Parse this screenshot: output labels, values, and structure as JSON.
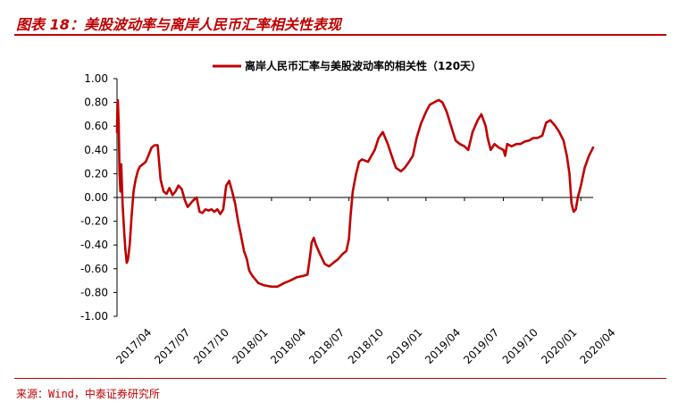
{
  "figure": {
    "title": "图表 18：美股波动率与离岸人民币汇率相关性表现",
    "source": "来源：Wind，中泰证券研究所"
  },
  "colors": {
    "accent": "#c00000",
    "series_line": "#c00000",
    "axis": "#000000"
  },
  "chart_data": {
    "type": "line",
    "title": "",
    "xlabel": "",
    "ylabel": "",
    "ylim": [
      -1.0,
      1.0
    ],
    "yticks": [
      "1.00",
      "0.80",
      "0.60",
      "0.40",
      "0.20",
      "0.00",
      "-0.20",
      "-0.40",
      "-0.60",
      "-0.80",
      "-1.00"
    ],
    "ytick_values": [
      1.0,
      0.8,
      0.6,
      0.4,
      0.2,
      0.0,
      -0.2,
      -0.4,
      -0.6,
      -0.8,
      -1.0
    ],
    "xticks": [
      "2017/04",
      "2017/07",
      "2017/10",
      "2018/01",
      "2018/04",
      "2018/07",
      "2018/10",
      "2019/01",
      "2019/04",
      "2019/07",
      "2019/10",
      "2020/01",
      "2020/04"
    ],
    "grid": false,
    "legend_position": "top-center",
    "series": [
      {
        "name": "离岸人民币汇率与美股波动率的相关性（120天）",
        "color": "#c00000",
        "x": [
          "2017-04-01",
          "2017-04-02",
          "2017-04-03",
          "2017-04-05",
          "2017-04-07",
          "2017-04-09",
          "2017-04-11",
          "2017-04-14",
          "2017-04-18",
          "2017-04-21",
          "2017-04-24",
          "2017-04-27",
          "2017-05-01",
          "2017-05-05",
          "2017-05-10",
          "2017-05-15",
          "2017-05-20",
          "2017-05-25",
          "2017-06-01",
          "2017-06-08",
          "2017-06-15",
          "2017-06-22",
          "2017-06-29",
          "2017-07-06",
          "2017-07-13",
          "2017-07-20",
          "2017-07-27",
          "2017-08-03",
          "2017-08-10",
          "2017-08-17",
          "2017-08-24",
          "2017-09-01",
          "2017-09-08",
          "2017-09-15",
          "2017-09-22",
          "2017-09-29",
          "2017-10-06",
          "2017-10-13",
          "2017-10-20",
          "2017-10-27",
          "2017-11-03",
          "2017-11-10",
          "2017-11-17",
          "2017-11-24",
          "2017-12-01",
          "2017-12-08",
          "2017-12-15",
          "2017-12-22",
          "2017-12-29",
          "2018-01-05",
          "2018-01-12",
          "2018-01-19",
          "2018-01-26",
          "2018-02-02",
          "2018-02-05",
          "2018-02-08",
          "2018-02-15",
          "2018-02-22",
          "2018-03-01",
          "2018-03-15",
          "2018-04-01",
          "2018-04-15",
          "2018-05-01",
          "2018-05-15",
          "2018-06-01",
          "2018-06-15",
          "2018-06-25",
          "2018-07-01",
          "2018-07-05",
          "2018-07-10",
          "2018-07-15",
          "2018-07-25",
          "2018-08-05",
          "2018-08-15",
          "2018-08-25",
          "2018-09-05",
          "2018-09-15",
          "2018-09-25",
          "2018-10-01",
          "2018-10-05",
          "2018-10-10",
          "2018-10-18",
          "2018-10-25",
          "2018-11-01",
          "2018-11-15",
          "2018-12-01",
          "2018-12-10",
          "2018-12-20",
          "2019-01-01",
          "2019-01-10",
          "2019-01-20",
          "2019-02-01",
          "2019-02-10",
          "2019-02-20",
          "2019-03-01",
          "2019-03-10",
          "2019-03-20",
          "2019-04-01",
          "2019-04-10",
          "2019-04-20",
          "2019-05-01",
          "2019-05-10",
          "2019-05-20",
          "2019-06-01",
          "2019-06-10",
          "2019-06-20",
          "2019-07-01",
          "2019-07-10",
          "2019-07-20",
          "2019-08-01",
          "2019-08-10",
          "2019-08-20",
          "2019-08-25",
          "2019-09-01",
          "2019-09-10",
          "2019-09-20",
          "2019-10-01",
          "2019-10-05",
          "2019-10-10",
          "2019-10-20",
          "2019-11-01",
          "2019-11-10",
          "2019-11-20",
          "2019-12-01",
          "2019-12-10",
          "2019-12-20",
          "2020-01-01",
          "2020-01-10",
          "2020-01-20",
          "2020-02-01",
          "2020-02-10",
          "2020-02-20",
          "2020-02-28",
          "2020-03-05",
          "2020-03-10",
          "2020-03-15",
          "2020-03-20",
          "2020-03-25",
          "2020-04-01",
          "2020-04-10",
          "2020-04-20",
          "2020-04-30"
        ],
        "values": [
          0.55,
          0.78,
          0.82,
          0.62,
          0.2,
          0.05,
          0.28,
          -0.05,
          -0.3,
          -0.45,
          -0.55,
          -0.52,
          -0.4,
          -0.18,
          0.05,
          0.15,
          0.22,
          0.26,
          0.28,
          0.3,
          0.36,
          0.42,
          0.44,
          0.44,
          0.15,
          0.05,
          0.03,
          0.08,
          0.02,
          0.05,
          0.1,
          0.07,
          -0.02,
          -0.08,
          -0.05,
          -0.02,
          0.0,
          -0.12,
          -0.13,
          -0.1,
          -0.11,
          -0.1,
          -0.12,
          -0.1,
          -0.14,
          -0.1,
          0.1,
          0.14,
          0.05,
          -0.05,
          -0.2,
          -0.32,
          -0.45,
          -0.52,
          -0.58,
          -0.62,
          -0.66,
          -0.69,
          -0.72,
          -0.74,
          -0.75,
          -0.75,
          -0.72,
          -0.7,
          -0.67,
          -0.66,
          -0.65,
          -0.5,
          -0.38,
          -0.34,
          -0.4,
          -0.48,
          -0.56,
          -0.58,
          -0.55,
          -0.52,
          -0.48,
          -0.45,
          -0.35,
          -0.15,
          0.05,
          0.2,
          0.3,
          0.32,
          0.3,
          0.4,
          0.5,
          0.55,
          0.45,
          0.35,
          0.25,
          0.22,
          0.25,
          0.3,
          0.35,
          0.5,
          0.62,
          0.72,
          0.78,
          0.8,
          0.82,
          0.8,
          0.72,
          0.58,
          0.48,
          0.45,
          0.43,
          0.4,
          0.55,
          0.65,
          0.7,
          0.6,
          0.5,
          0.4,
          0.45,
          0.42,
          0.4,
          0.35,
          0.45,
          0.43,
          0.45,
          0.45,
          0.47,
          0.48,
          0.5,
          0.5,
          0.52,
          0.63,
          0.65,
          0.6,
          0.55,
          0.48,
          0.35,
          0.2,
          -0.05,
          -0.12,
          -0.1,
          0.0,
          0.1,
          0.25,
          0.35,
          0.42
        ]
      }
    ]
  }
}
